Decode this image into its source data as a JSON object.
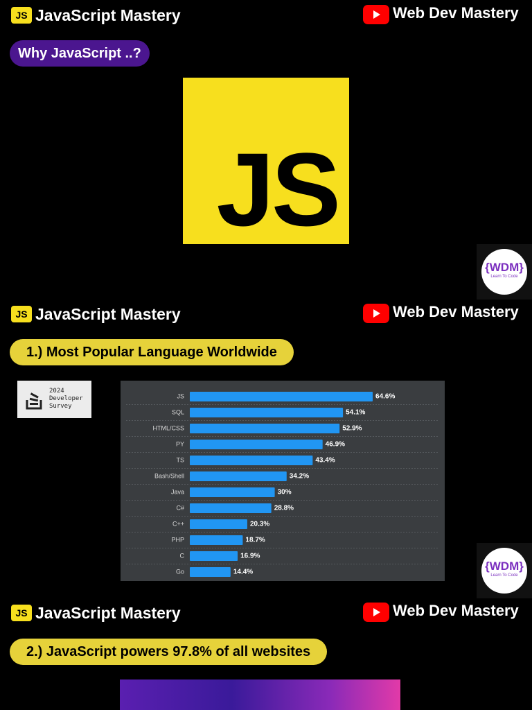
{
  "sections": [
    {
      "badge": "JS",
      "brand": "JavaScript Mastery",
      "channel": "Web Dev Mastery",
      "heading": "Why JavaScript ..?",
      "logo": "JS",
      "wdm": "{WDM}",
      "wdm_sub": "Learn To Code"
    },
    {
      "badge": "JS",
      "brand": "JavaScript Mastery",
      "channel": "Web Dev Mastery",
      "heading": "1.) Most Popular Language Worldwide",
      "survey": {
        "year": "2024",
        "line1": "Developer",
        "line2": "Survey"
      },
      "chart": {
        "type": "bar",
        "orientation": "horizontal",
        "color": "#2196f3",
        "categories": [
          "JS",
          "SQL",
          "HTML/CSS",
          "PY",
          "TS",
          "Bash/Shell",
          "Java",
          "C#",
          "C++",
          "PHP",
          "C",
          "Go"
        ],
        "values": [
          64.6,
          54.1,
          52.9,
          46.9,
          43.4,
          34.2,
          30,
          28.8,
          20.3,
          18.7,
          16.9,
          14.4
        ],
        "value_labels": [
          "64.6%",
          "54.1%",
          "52.9%",
          "46.9%",
          "43.4%",
          "34.2%",
          "30%",
          "28.8%",
          "20.3%",
          "18.7%",
          "16.9%",
          "14.4%"
        ]
      },
      "wdm": "{WDM}",
      "wdm_sub": "Learn To Code"
    },
    {
      "badge": "JS",
      "brand": "JavaScript Mastery",
      "channel": "Web Dev Mastery",
      "heading": "2.) JavaScript powers 97.8% of all websites"
    }
  ]
}
